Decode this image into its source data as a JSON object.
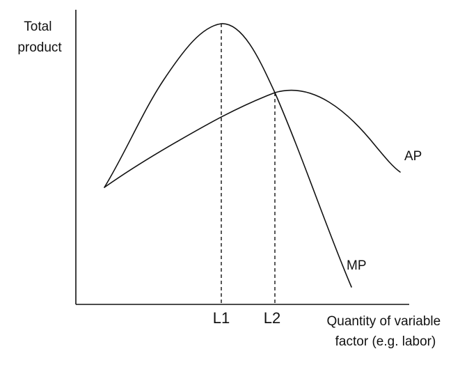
{
  "diagram": {
    "y_axis_label": [
      "Total",
      "product"
    ],
    "x_axis_label": [
      "Quantity of variable",
      "factor (e.g. labor)"
    ],
    "ticks": [
      {
        "key": "l1",
        "label": "L1"
      },
      {
        "key": "l2",
        "label": "L2"
      }
    ],
    "curves": [
      {
        "key": "ap",
        "label": "AP"
      },
      {
        "key": "mp",
        "label": "MP"
      }
    ],
    "line_color": "#111111",
    "background": "#ffffff"
  }
}
